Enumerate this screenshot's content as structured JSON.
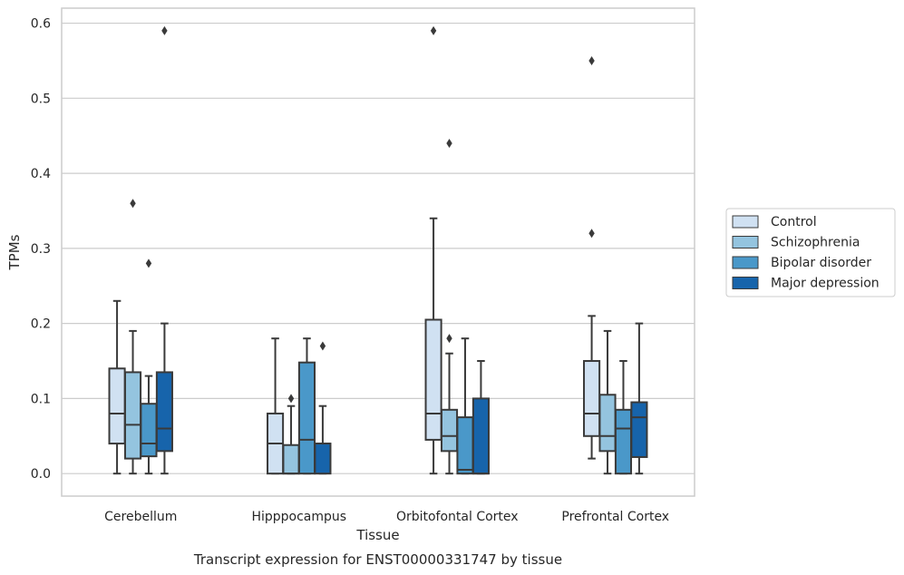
{
  "chart_data": {
    "type": "boxplot",
    "title": "Transcript expression for ENST00000331747 by tissue",
    "xlabel": "Tissue",
    "ylabel": "TPMs",
    "ylim": [
      -0.03,
      0.62
    ],
    "yticks": [
      "0.0",
      "0.1",
      "0.2",
      "0.3",
      "0.4",
      "0.5",
      "0.6"
    ],
    "ytick_values": [
      0.0,
      0.1,
      0.2,
      0.3,
      0.4,
      0.5,
      0.6
    ],
    "grid": true,
    "legend_position": "right",
    "categories": [
      "Cerebellum",
      "Hipppocampus",
      "Orbitofontal Cortex",
      "Prefrontal Cortex"
    ],
    "series": [
      {
        "name": "Control",
        "color": "#d0e1f2",
        "boxes": [
          {
            "whislo": 0.0,
            "q1": 0.04,
            "med": 0.08,
            "q3": 0.14,
            "whishi": 0.23,
            "fliers": []
          },
          {
            "whislo": 0.0,
            "q1": 0.0,
            "med": 0.04,
            "q3": 0.08,
            "whishi": 0.18,
            "fliers": []
          },
          {
            "whislo": 0.0,
            "q1": 0.045,
            "med": 0.08,
            "q3": 0.205,
            "whishi": 0.34,
            "fliers": [
              0.59
            ]
          },
          {
            "whislo": 0.02,
            "q1": 0.05,
            "med": 0.08,
            "q3": 0.15,
            "whishi": 0.21,
            "fliers": [
              0.32,
              0.55
            ]
          }
        ]
      },
      {
        "name": "Schizophrenia",
        "color": "#94c4df",
        "boxes": [
          {
            "whislo": 0.0,
            "q1": 0.02,
            "med": 0.065,
            "q3": 0.135,
            "whishi": 0.19,
            "fliers": [
              0.36
            ]
          },
          {
            "whislo": 0.0,
            "q1": 0.0,
            "med": 0.0,
            "q3": 0.038,
            "whishi": 0.09,
            "fliers": [
              0.1
            ]
          },
          {
            "whislo": 0.0,
            "q1": 0.03,
            "med": 0.05,
            "q3": 0.085,
            "whishi": 0.16,
            "fliers": [
              0.18,
              0.44
            ]
          },
          {
            "whislo": 0.0,
            "q1": 0.03,
            "med": 0.05,
            "q3": 0.105,
            "whishi": 0.19,
            "fliers": []
          }
        ]
      },
      {
        "name": "Bipolar disorder",
        "color": "#4a98c9",
        "boxes": [
          {
            "whislo": 0.0,
            "q1": 0.023,
            "med": 0.04,
            "q3": 0.093,
            "whishi": 0.13,
            "fliers": [
              0.28
            ]
          },
          {
            "whislo": 0.0,
            "q1": 0.0,
            "med": 0.045,
            "q3": 0.148,
            "whishi": 0.18,
            "fliers": []
          },
          {
            "whislo": 0.0,
            "q1": 0.0,
            "med": 0.005,
            "q3": 0.075,
            "whishi": 0.18,
            "fliers": []
          },
          {
            "whislo": 0.0,
            "q1": 0.0,
            "med": 0.06,
            "q3": 0.085,
            "whishi": 0.15,
            "fliers": []
          }
        ]
      },
      {
        "name": "Major depression",
        "color": "#1764ab",
        "boxes": [
          {
            "whislo": 0.0,
            "q1": 0.03,
            "med": 0.06,
            "q3": 0.135,
            "whishi": 0.2,
            "fliers": [
              0.59
            ]
          },
          {
            "whislo": 0.0,
            "q1": 0.0,
            "med": 0.04,
            "q3": 0.04,
            "whishi": 0.09,
            "fliers": [
              0.17
            ]
          },
          {
            "whislo": 0.0,
            "q1": 0.0,
            "med": 0.0,
            "q3": 0.1,
            "whishi": 0.15,
            "fliers": []
          },
          {
            "whislo": 0.0,
            "q1": 0.022,
            "med": 0.075,
            "q3": 0.095,
            "whishi": 0.2,
            "fliers": []
          }
        ]
      }
    ]
  },
  "colors": {
    "axis_frame": "#cccccc",
    "grid": "#cccccc",
    "box_edge": "#3a3a3a"
  }
}
